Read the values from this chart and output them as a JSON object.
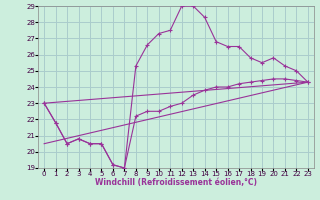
{
  "xlabel": "Windchill (Refroidissement éolien,°C)",
  "bg_color": "#cceedd",
  "grid_color": "#aacccc",
  "line_color": "#993399",
  "xlim": [
    -0.5,
    23.5
  ],
  "ylim": [
    19,
    29
  ],
  "yticks": [
    19,
    20,
    21,
    22,
    23,
    24,
    25,
    26,
    27,
    28,
    29
  ],
  "xticks": [
    0,
    1,
    2,
    3,
    4,
    5,
    6,
    7,
    8,
    9,
    10,
    11,
    12,
    13,
    14,
    15,
    16,
    17,
    18,
    19,
    20,
    21,
    22,
    23
  ],
  "series": [
    {
      "x": [
        0,
        1,
        2,
        3,
        4,
        5,
        6,
        7,
        8,
        9,
        10,
        11,
        12,
        13,
        14,
        15,
        16,
        17,
        18,
        19,
        20,
        21,
        22,
        23
      ],
      "y": [
        23.0,
        21.8,
        20.5,
        20.8,
        20.5,
        20.5,
        19.2,
        19.0,
        25.3,
        26.6,
        27.3,
        27.5,
        29.0,
        29.0,
        28.3,
        26.8,
        26.5,
        26.5,
        25.8,
        25.5,
        25.8,
        25.3,
        25.0,
        24.3
      ],
      "markers": true
    },
    {
      "x": [
        0,
        1,
        2,
        3,
        4,
        5,
        6,
        7,
        8,
        9,
        10,
        11,
        12,
        13,
        14,
        15,
        16,
        17,
        18,
        19,
        20,
        21,
        22,
        23
      ],
      "y": [
        23.0,
        21.8,
        20.5,
        20.8,
        20.5,
        20.5,
        19.2,
        19.0,
        22.2,
        22.5,
        22.5,
        22.8,
        23.0,
        23.5,
        23.8,
        24.0,
        24.0,
        24.2,
        24.3,
        24.4,
        24.5,
        24.5,
        24.4,
        24.3
      ],
      "markers": true
    },
    {
      "x": [
        0,
        23
      ],
      "y": [
        23.0,
        24.3
      ],
      "markers": false
    },
    {
      "x": [
        0,
        23
      ],
      "y": [
        20.5,
        24.3
      ],
      "markers": false
    }
  ]
}
